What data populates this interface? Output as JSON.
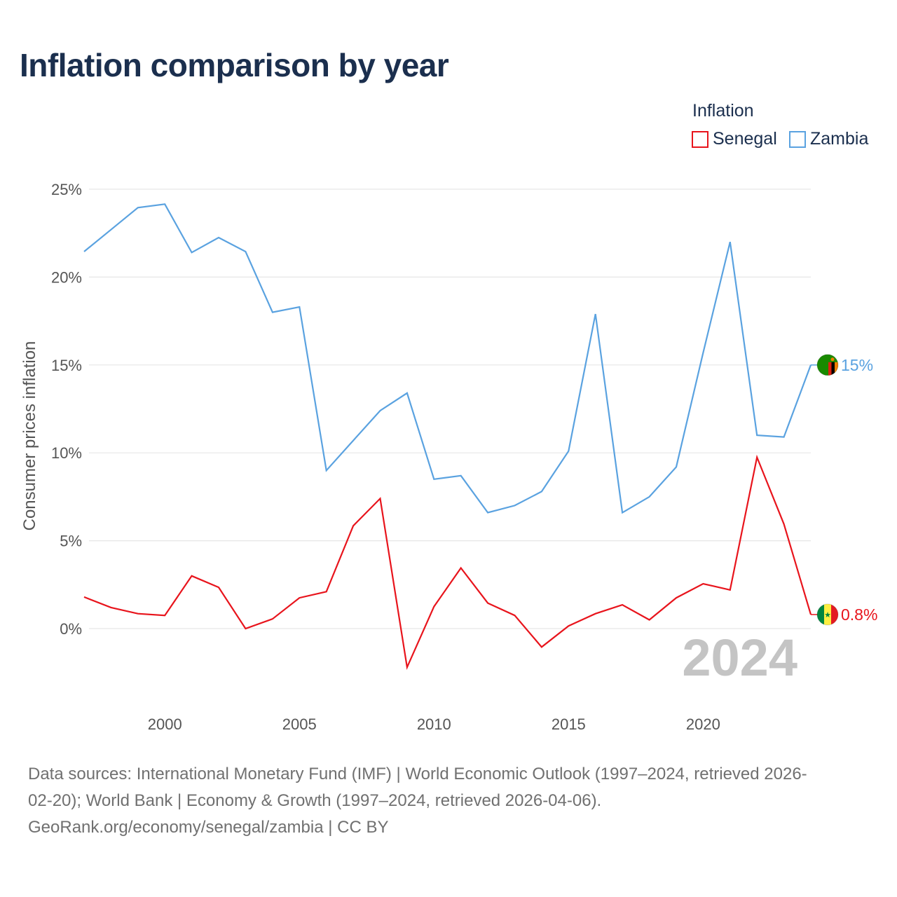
{
  "chart_data": {
    "type": "line",
    "title": "Inflation comparison by year",
    "legend_title": "Inflation",
    "legend_position": "top-right",
    "ylabel": "Consumer prices inflation",
    "xlabel": "",
    "xlim": [
      1997,
      2024
    ],
    "ylim": [
      -4.5,
      25
    ],
    "y_ticks": [
      0,
      5,
      10,
      15,
      20,
      25
    ],
    "y_tick_labels": [
      "0%",
      "5%",
      "10%",
      "15%",
      "20%",
      "25%"
    ],
    "x_ticks": [
      2000,
      2005,
      2010,
      2015,
      2020
    ],
    "x_tick_labels": [
      "2000",
      "2005",
      "2010",
      "2015",
      "2020"
    ],
    "grid": true,
    "year_label": "2024",
    "x": [
      1997,
      1998,
      1999,
      2000,
      2001,
      2002,
      2003,
      2004,
      2005,
      2006,
      2007,
      2008,
      2009,
      2010,
      2011,
      2012,
      2013,
      2014,
      2015,
      2016,
      2017,
      2018,
      2019,
      2020,
      2021,
      2022,
      2023,
      2024
    ],
    "series": [
      {
        "name": "Senegal",
        "color": "#e8141c",
        "end_label": "0.8%",
        "flag": "senegal-flag",
        "values": [
          1.8,
          1.2,
          0.85,
          0.75,
          3.0,
          2.35,
          0.0,
          0.55,
          1.75,
          2.1,
          5.85,
          7.4,
          -2.2,
          1.25,
          3.45,
          1.45,
          0.75,
          -1.05,
          0.15,
          0.85,
          1.35,
          0.5,
          1.75,
          2.55,
          2.2,
          9.75,
          5.95,
          0.8
        ]
      },
      {
        "name": "Zambia",
        "color": "#5aa2e0",
        "end_label": "15%",
        "flag": "zambia-flag",
        "values": [
          21.45,
          22.7,
          23.95,
          24.15,
          21.4,
          22.25,
          21.45,
          18.0,
          18.3,
          9.0,
          10.7,
          12.4,
          13.4,
          8.5,
          8.7,
          6.6,
          7.0,
          7.8,
          10.1,
          17.9,
          6.6,
          7.5,
          9.2,
          15.7,
          22.0,
          11.0,
          10.9,
          15.0
        ]
      }
    ]
  },
  "sources": {
    "line1": "Data sources: International Monetary Fund (IMF) | World Economic Outlook (1997–2024, retrieved 2026-",
    "line2": "02-20); World Bank | Economy & Growth (1997–2024, retrieved 2026-04-06).",
    "line3": "GeoRank.org/economy/senegal/zambia | CC BY"
  }
}
